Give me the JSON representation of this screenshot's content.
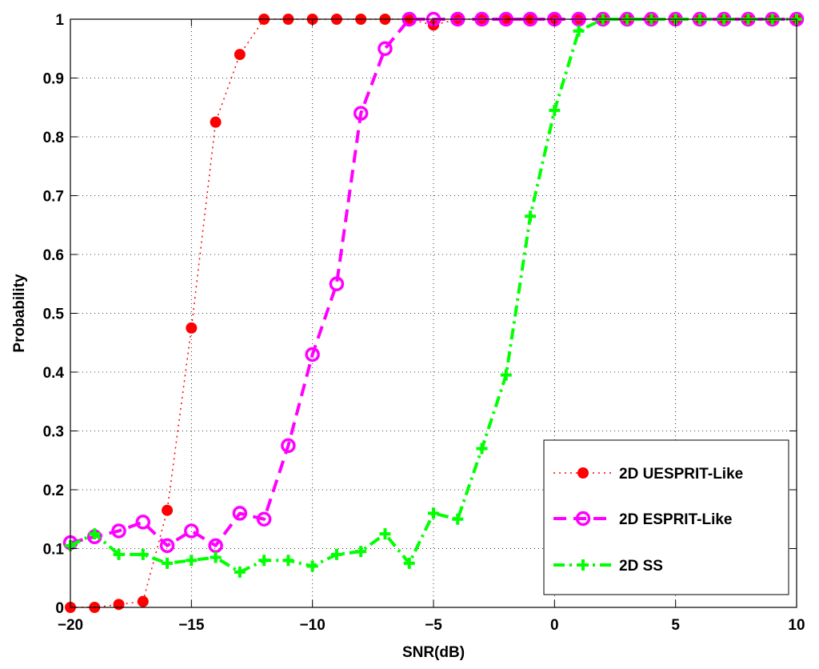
{
  "chart_data": {
    "type": "line",
    "title": "",
    "xlabel": "SNR(dB)",
    "ylabel": "Probability",
    "xlim": [
      -20,
      10
    ],
    "ylim": [
      0,
      1
    ],
    "xticks": [
      -20,
      -15,
      -10,
      -5,
      0,
      5,
      10
    ],
    "xtick_labels": [
      "−20",
      "−15",
      "−10",
      "−5",
      "0",
      "5",
      "10"
    ],
    "yticks": [
      0,
      0.1,
      0.2,
      0.3,
      0.4,
      0.5,
      0.6,
      0.7,
      0.8,
      0.9,
      1
    ],
    "ytick_labels": [
      "0",
      "0.1",
      "0.2",
      "0.3",
      "0.4",
      "0.5",
      "0.6",
      "0.7",
      "0.8",
      "0.9",
      "1"
    ],
    "grid": true,
    "legend_position": "bottom-right",
    "x": [
      -20,
      -19,
      -18,
      -17,
      -16,
      -15,
      -14,
      -13,
      -12,
      -11,
      -10,
      -9,
      -8,
      -7,
      -6,
      -5,
      -4,
      -3,
      -2,
      -1,
      0,
      1,
      2,
      3,
      4,
      5,
      6,
      7,
      8,
      9,
      10
    ],
    "series": [
      {
        "name": "2D UESPRIT-Like",
        "color": "#ff0000",
        "line_style": "dotted",
        "marker": "filled-circle",
        "values": [
          0,
          0,
          0.005,
          0.01,
          0.165,
          0.475,
          0.825,
          0.94,
          1,
          1,
          1,
          1,
          1,
          1,
          1,
          0.99,
          1,
          1,
          1,
          1,
          1,
          1,
          1,
          1,
          1,
          1,
          1,
          1,
          1,
          1,
          1
        ]
      },
      {
        "name": "2D ESPRIT-Like",
        "color": "#ff00ff",
        "line_style": "dashed",
        "marker": "open-circle",
        "values": [
          0.11,
          0.12,
          0.13,
          0.145,
          0.105,
          0.13,
          0.105,
          0.16,
          0.15,
          0.275,
          0.43,
          0.55,
          0.84,
          0.95,
          1,
          1,
          1,
          1,
          1,
          1,
          1,
          1,
          1,
          1,
          1,
          1,
          1,
          1,
          1,
          1,
          1
        ]
      },
      {
        "name": "2D SS",
        "color": "#00ff00",
        "line_style": "dash-dot",
        "marker": "plus",
        "values": [
          0.105,
          0.125,
          0.09,
          0.09,
          0.075,
          0.08,
          0.085,
          0.06,
          0.08,
          0.08,
          0.07,
          0.09,
          0.095,
          0.125,
          0.075,
          0.16,
          0.15,
          0.27,
          0.395,
          0.665,
          0.845,
          0.98,
          1,
          1,
          1,
          1,
          1,
          1,
          1,
          1,
          1
        ]
      }
    ]
  }
}
